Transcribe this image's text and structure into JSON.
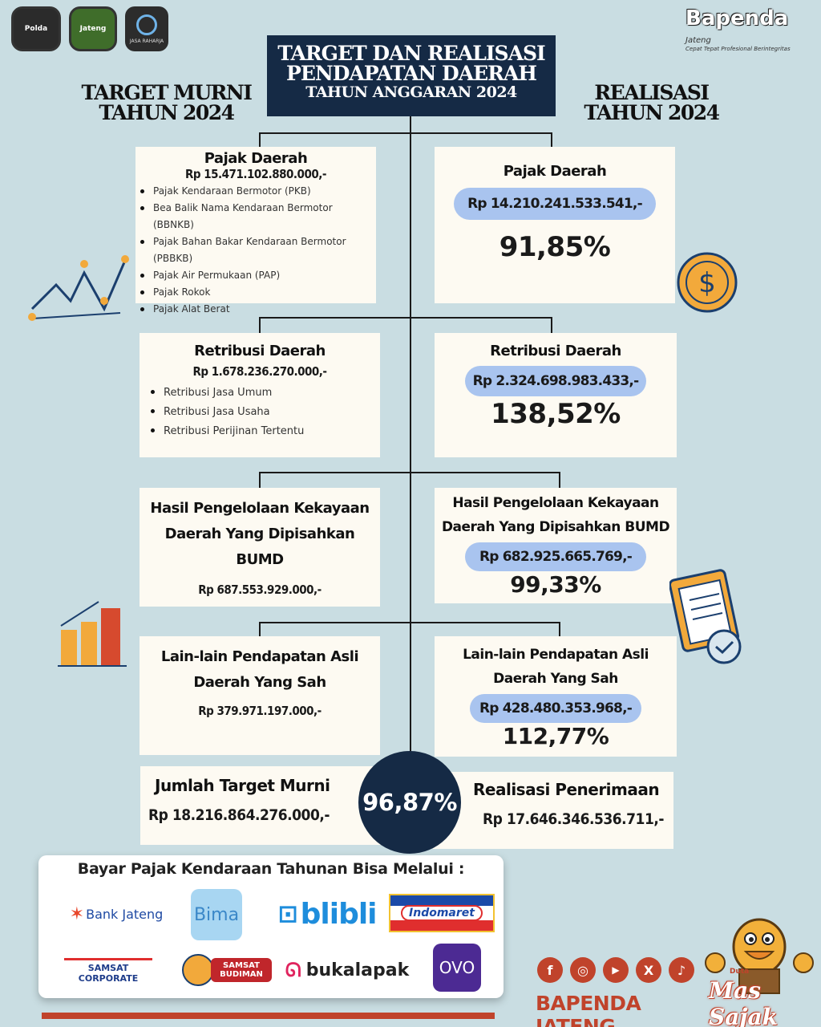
{
  "header": {
    "logo1": "Polda",
    "logo2": "Jateng",
    "logo3_text": "JASA RAHARJA",
    "brand": "Bapenda",
    "brand_script": "Jateng",
    "brand_tagline": "Cepat Tepat Profesional Berintegritas"
  },
  "title": {
    "line1": "TARGET DAN REALISASI",
    "line2": "PENDAPATAN DAERAH",
    "line3": "TAHUN ANGGARAN 2024"
  },
  "left_title": {
    "line1": "TARGET MURNI",
    "line2": "TAHUN 2024"
  },
  "right_title": {
    "line1": "REALISASI",
    "line2": "TAHUN 2024"
  },
  "targets": [
    {
      "title": "Pajak Daerah",
      "amount": "Rp 15.471.102.880.000,-",
      "items": [
        "Pajak Kendaraan Bermotor (PKB)",
        "Bea Balik Nama Kendaraan Bermotor (BBNKB)",
        "Pajak Bahan Bakar Kendaraan Bermotor (PBBKB)",
        "Pajak Air Permukaan (PAP)",
        "Pajak Rokok",
        "Pajak Alat Berat"
      ]
    },
    {
      "title": "Retribusi Daerah",
      "amount": "Rp 1.678.236.270.000,-",
      "items": [
        "Retribusi Jasa Umum",
        "Retribusi Jasa Usaha",
        "Retribusi Perijinan Tertentu"
      ]
    },
    {
      "title_line1": "Hasil Pengelolaan Kekayaan",
      "title_line2": "Daerah Yang Dipisahkan BUMD",
      "amount": "Rp 687.553.929.000,-"
    },
    {
      "title_line1": "Lain-lain Pendapatan Asli",
      "title_line2": "Daerah Yang Sah",
      "amount": "Rp 379.971.197.000,-"
    }
  ],
  "realisasi": [
    {
      "title": "Pajak Daerah",
      "amount": "Rp 14.210.241.533.541,-",
      "percent": "91,85%"
    },
    {
      "title": "Retribusi Daerah",
      "amount": "Rp 2.324.698.983.433,-",
      "percent": "138,52%"
    },
    {
      "title_line1": "Hasil Pengelolaan Kekayaan",
      "title_line2": "Daerah Yang Dipisahkan BUMD",
      "amount": "Rp 682.925.665.769,-",
      "percent": "99,33%"
    },
    {
      "title_line1": "Lain-lain Pendapatan Asli",
      "title_line2": "Daerah Yang Sah",
      "amount": "Rp 428.480.353.968,-",
      "percent": "112,77%"
    }
  ],
  "total": {
    "target_label": "Jumlah Target Murni",
    "target_amount": "Rp 18.216.864.276.000,-",
    "percent": "96,87%",
    "real_label": "Realisasi Penerimaan",
    "real_amount": "Rp 17.646.346.536.711,-"
  },
  "payment": {
    "title": "Bayar Pajak Kendaraan Tahunan Bisa Melalui :",
    "logos": [
      "Bank Jateng",
      "Bima",
      "blibli",
      "Indomaret",
      "SAMSAT CORPORATE",
      "SAMSAT BUDIMAN",
      "bukalapak",
      "OVO"
    ]
  },
  "social": {
    "icons": [
      "f",
      "◎",
      "▶",
      "X",
      "♪"
    ]
  },
  "footer": {
    "brand": "BAPENDA JATENG",
    "mascot_line1": "Duta",
    "mascot_line2": "Mas Sajak"
  },
  "colors": {
    "navy": "#152a45",
    "pill": "#a9c4ef",
    "accent": "#c0432b",
    "bg": "#c9dde2"
  }
}
